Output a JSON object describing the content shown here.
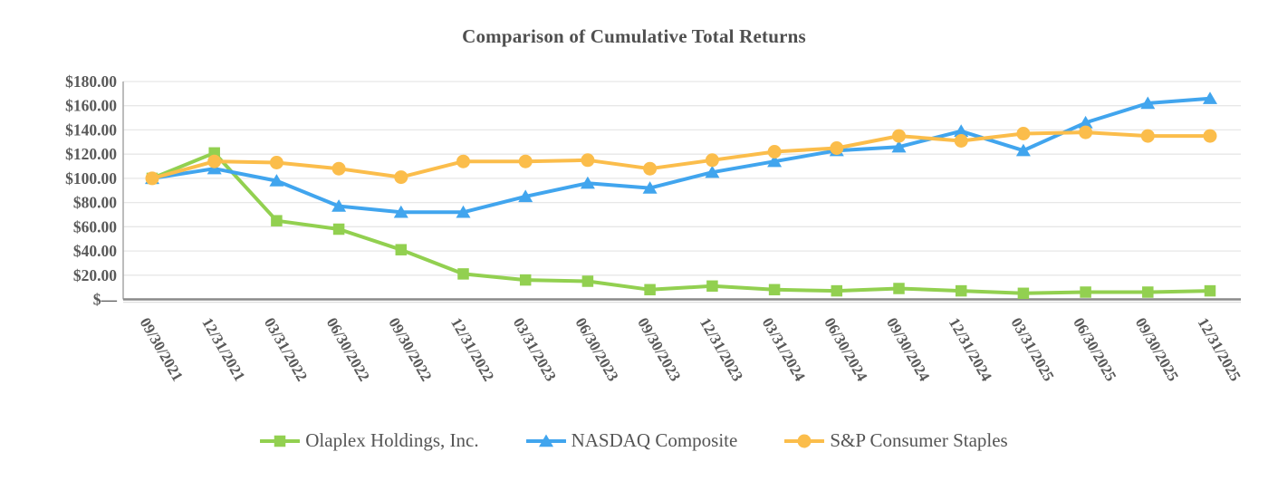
{
  "title": "Comparison of Cumulative Total Returns",
  "chart_data": {
    "type": "line",
    "title": "Comparison of Cumulative Total Returns",
    "x_labels": [
      "09/30/2021",
      "12/31/2021",
      "03/31/2022",
      "06/30/2022",
      "09/30/2022",
      "12/31/2022",
      "03/31/2023",
      "06/30/2023",
      "09/30/2023",
      "12/31/2023",
      "03/31/2024",
      "06/30/2024",
      "09/30/2024",
      "12/31/2024",
      "03/31/2025",
      "06/30/2025",
      "09/30/2025",
      "12/31/2025"
    ],
    "y_ticks": {
      "values": [
        180,
        160,
        140,
        120,
        100,
        80,
        60,
        40,
        20,
        0
      ],
      "labels": [
        "$180.00",
        "$160.00",
        "$140.00",
        "$120.00",
        "$100.00",
        "$80.00",
        "$60.00",
        "$40.00",
        "$20.00",
        "$—"
      ]
    },
    "ylim": [
      0,
      180
    ],
    "grid": true,
    "legend_position": "bottom",
    "series": [
      {
        "name": "Olaplex Holdings, Inc.",
        "marker": "square",
        "color": "#92D050",
        "values": [
          100,
          121,
          65,
          58,
          41,
          21,
          16,
          15,
          8,
          11,
          8,
          7,
          9,
          7,
          5,
          6,
          6,
          7
        ]
      },
      {
        "name": "NASDAQ Composite",
        "marker": "triangle",
        "color": "#41A5EE",
        "values": [
          100,
          108,
          98,
          77,
          72,
          72,
          85,
          96,
          92,
          105,
          114,
          123,
          126,
          139,
          123,
          146,
          162,
          166
        ]
      },
      {
        "name": "S&P Consumer Staples",
        "marker": "circle",
        "color": "#FBBD4B",
        "values": [
          100,
          114,
          113,
          108,
          101,
          114,
          114,
          115,
          108,
          115,
          122,
          125,
          135,
          131,
          137,
          138,
          135,
          135
        ]
      }
    ],
    "colors": {
      "grid": "#E7E7E7",
      "axis": "#8A8A8A",
      "plot_border": "#ACACAC",
      "text": "#595959"
    }
  }
}
